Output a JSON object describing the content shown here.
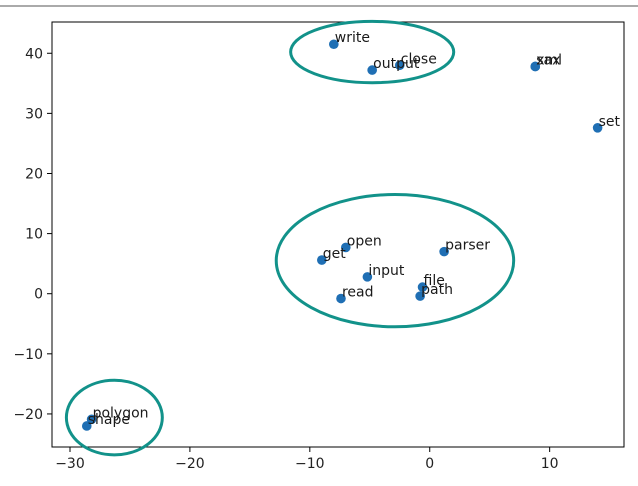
{
  "chart_data": {
    "type": "scatter",
    "title": "",
    "xlabel": "",
    "ylabel": "",
    "xlim": [
      -31.5,
      16.2
    ],
    "ylim": [
      -25.5,
      45.2
    ],
    "grid": false,
    "x_ticks": [
      -30,
      -20,
      -10,
      0,
      10
    ],
    "x_tick_labels": [
      "−30",
      "−20",
      "−10",
      "0",
      "10"
    ],
    "y_ticks": [
      -20,
      -10,
      0,
      10,
      20,
      30,
      40
    ],
    "y_tick_labels": [
      "−20",
      "−10",
      "0",
      "10",
      "20",
      "30",
      "40"
    ],
    "point_color": "#1f6fb4",
    "cluster_color": "#12928a",
    "points": [
      {
        "label": "write",
        "x": -8.0,
        "y": 41.5
      },
      {
        "label": "close",
        "x": -2.5,
        "y": 38.0
      },
      {
        "label": "output",
        "x": -4.8,
        "y": 37.2
      },
      {
        "label": "sax",
        "x": 8.8,
        "y": 37.8
      },
      {
        "label": "xml",
        "x": 8.8,
        "y": 37.8
      },
      {
        "label": "set",
        "x": 14.0,
        "y": 27.6
      },
      {
        "label": "open",
        "x": -7.0,
        "y": 7.7
      },
      {
        "label": "parser",
        "x": 1.2,
        "y": 7.0
      },
      {
        "label": "get",
        "x": -9.0,
        "y": 5.6
      },
      {
        "label": "input",
        "x": -5.2,
        "y": 2.8
      },
      {
        "label": "file",
        "x": -0.6,
        "y": 1.1
      },
      {
        "label": "path",
        "x": -0.8,
        "y": -0.4
      },
      {
        "label": "read",
        "x": -7.4,
        "y": -0.8
      },
      {
        "label": "polygon",
        "x": -28.2,
        "y": -20.9
      },
      {
        "label": "shape",
        "x": -28.6,
        "y": -22.0
      }
    ],
    "annotations": [
      {
        "type": "ellipse",
        "cx": -4.8,
        "cy": 40.2,
        "rx": 6.8,
        "ry": 5.1
      },
      {
        "type": "ellipse",
        "cx": -2.9,
        "cy": 5.5,
        "rx": 9.9,
        "ry": 11.0
      },
      {
        "type": "ellipse",
        "cx": -26.3,
        "cy": -20.6,
        "rx": 4.0,
        "ry": 6.2
      }
    ]
  }
}
